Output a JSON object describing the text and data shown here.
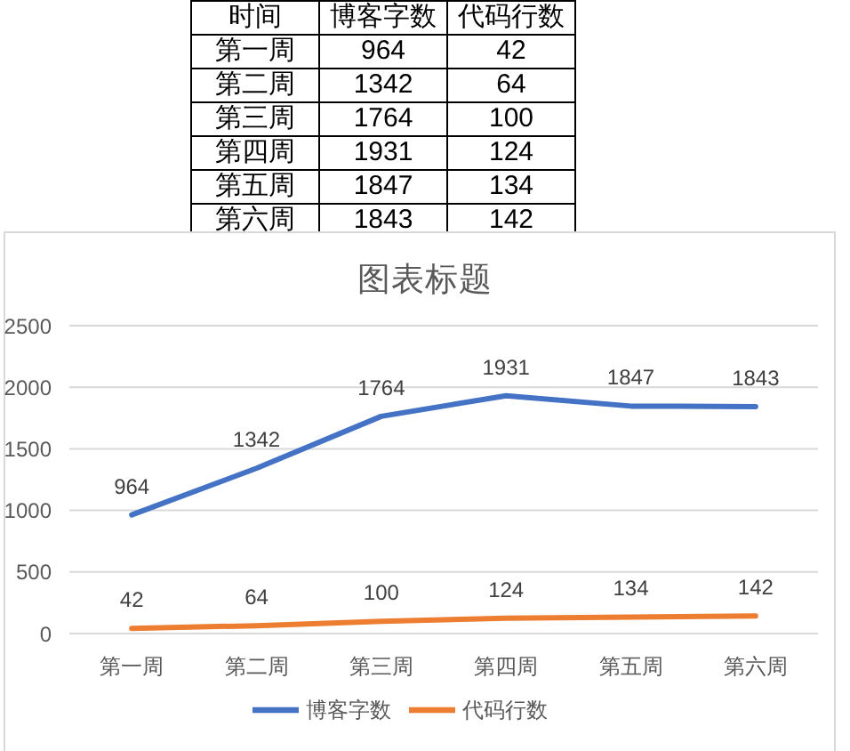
{
  "chart_data": [
    {
      "type": "other",
      "annotations": [
        "时间"
      ],
      "categories": [
        "第一周",
        "第二周",
        "第三周",
        "第四周",
        "第五周",
        "第六周"
      ],
      "series": [
        {
          "name": "博客字数",
          "values": [
            964,
            1342,
            1764,
            1931,
            1847,
            1843
          ]
        },
        {
          "name": "代码行数",
          "values": [
            42,
            64,
            100,
            124,
            134,
            142
          ]
        }
      ],
      "data_labels": true
    },
    {
      "type": "line",
      "title": "图表标题",
      "categories": [
        "第一周",
        "第二周",
        "第三周",
        "第四周",
        "第五周",
        "第六周"
      ],
      "series": [
        {
          "name": "博客字数",
          "color": "#4472c4",
          "values": [
            964,
            1342,
            1764,
            1931,
            1847,
            1843
          ]
        },
        {
          "name": "代码行数",
          "color": "#ed7d31",
          "values": [
            42,
            64,
            100,
            124,
            134,
            142
          ]
        }
      ],
      "ylim": [
        0,
        2500
      ],
      "yticks": [
        0,
        500,
        1000,
        1500,
        2000,
        2500
      ],
      "grid": "y",
      "legend": "bottom",
      "data_labels": true,
      "marker": "none",
      "line_style": "solid"
    }
  ]
}
